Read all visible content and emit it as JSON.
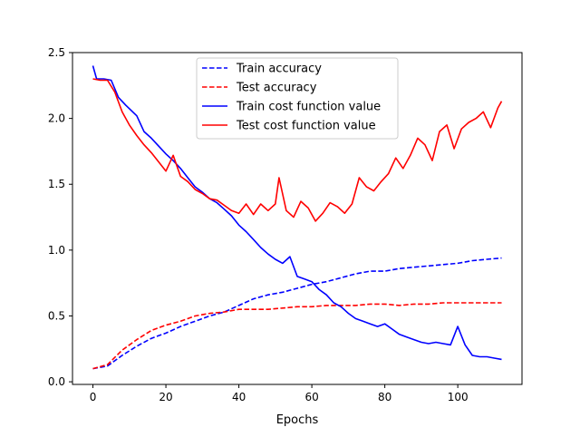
{
  "chart_data": {
    "type": "line",
    "title": "",
    "xlabel": "Epochs",
    "ylabel": "",
    "xlim": [
      -5.6,
      117.6
    ],
    "ylim": [
      -0.02,
      2.5
    ],
    "xticks": [
      0,
      20,
      40,
      60,
      80,
      100
    ],
    "yticks": [
      0.0,
      0.5,
      1.0,
      1.5,
      2.0,
      2.5
    ],
    "xtick_labels": [
      "0",
      "20",
      "40",
      "60",
      "80",
      "100"
    ],
    "ytick_labels": [
      "0.0",
      "0.5",
      "1.0",
      "1.5",
      "2.0",
      "2.5"
    ],
    "grid": false,
    "legend_position": "top-center",
    "series": [
      {
        "name": "Train accuracy",
        "color": "#0000ff",
        "dash": "dashed",
        "x": [
          0,
          4,
          8,
          12,
          16,
          20,
          24,
          28,
          32,
          36,
          40,
          44,
          48,
          52,
          56,
          60,
          64,
          68,
          72,
          76,
          80,
          84,
          88,
          92,
          96,
          100,
          104,
          108,
          112
        ],
        "values": [
          0.1,
          0.12,
          0.2,
          0.27,
          0.33,
          0.37,
          0.42,
          0.46,
          0.5,
          0.53,
          0.58,
          0.63,
          0.66,
          0.68,
          0.71,
          0.74,
          0.76,
          0.79,
          0.82,
          0.84,
          0.84,
          0.86,
          0.87,
          0.88,
          0.89,
          0.9,
          0.92,
          0.93,
          0.94
        ]
      },
      {
        "name": "Test accuracy",
        "color": "#ff0000",
        "dash": "dashed",
        "x": [
          0,
          4,
          8,
          12,
          16,
          20,
          24,
          28,
          32,
          36,
          40,
          44,
          48,
          52,
          56,
          60,
          64,
          68,
          72,
          76,
          80,
          84,
          88,
          92,
          96,
          100,
          104,
          108,
          112
        ],
        "values": [
          0.1,
          0.13,
          0.24,
          0.32,
          0.39,
          0.43,
          0.46,
          0.5,
          0.52,
          0.53,
          0.55,
          0.55,
          0.55,
          0.56,
          0.57,
          0.57,
          0.58,
          0.58,
          0.58,
          0.59,
          0.59,
          0.58,
          0.59,
          0.59,
          0.6,
          0.6,
          0.6,
          0.6,
          0.6
        ]
      },
      {
        "name": "Train cost function value",
        "color": "#0000ff",
        "dash": "solid",
        "x": [
          0,
          1,
          3,
          5,
          7,
          9,
          12,
          14,
          16,
          18,
          20,
          22,
          24,
          26,
          28,
          30,
          32,
          34,
          36,
          38,
          40,
          42,
          44,
          46,
          48,
          50,
          52,
          54,
          56,
          58,
          60,
          62,
          64,
          66,
          68,
          70,
          72,
          74,
          76,
          78,
          80,
          82,
          84,
          86,
          88,
          90,
          92,
          94,
          96,
          98,
          100,
          102,
          104,
          106,
          108,
          110,
          112
        ],
        "values": [
          2.4,
          2.3,
          2.3,
          2.29,
          2.16,
          2.1,
          2.02,
          1.9,
          1.85,
          1.79,
          1.73,
          1.68,
          1.62,
          1.55,
          1.48,
          1.44,
          1.39,
          1.36,
          1.31,
          1.26,
          1.19,
          1.14,
          1.08,
          1.02,
          0.97,
          0.93,
          0.9,
          0.95,
          0.8,
          0.78,
          0.76,
          0.7,
          0.66,
          0.6,
          0.57,
          0.52,
          0.48,
          0.46,
          0.44,
          0.42,
          0.44,
          0.4,
          0.36,
          0.34,
          0.32,
          0.3,
          0.29,
          0.3,
          0.29,
          0.28,
          0.42,
          0.28,
          0.2,
          0.19,
          0.19,
          0.18,
          0.17
        ]
      },
      {
        "name": "Test cost function value",
        "color": "#ff0000",
        "dash": "solid",
        "x": [
          0,
          2,
          4,
          6,
          8,
          10,
          12,
          14,
          16,
          18,
          20,
          22,
          24,
          26,
          28,
          30,
          32,
          34,
          36,
          38,
          40,
          42,
          44,
          46,
          48,
          50,
          51,
          53,
          55,
          57,
          59,
          61,
          63,
          65,
          67,
          69,
          71,
          73,
          75,
          77,
          79,
          81,
          83,
          85,
          87,
          89,
          91,
          93,
          95,
          97,
          99,
          101,
          103,
          105,
          107,
          109,
          111,
          112
        ],
        "values": [
          2.3,
          2.29,
          2.29,
          2.2,
          2.05,
          1.95,
          1.87,
          1.8,
          1.74,
          1.67,
          1.6,
          1.72,
          1.56,
          1.52,
          1.46,
          1.43,
          1.39,
          1.38,
          1.34,
          1.3,
          1.28,
          1.35,
          1.27,
          1.35,
          1.3,
          1.35,
          1.55,
          1.3,
          1.25,
          1.37,
          1.32,
          1.22,
          1.28,
          1.36,
          1.33,
          1.28,
          1.35,
          1.55,
          1.48,
          1.45,
          1.52,
          1.58,
          1.7,
          1.62,
          1.72,
          1.85,
          1.8,
          1.68,
          1.9,
          1.95,
          1.77,
          1.92,
          1.97,
          2.0,
          2.05,
          1.93,
          2.08,
          2.13
        ]
      }
    ]
  }
}
